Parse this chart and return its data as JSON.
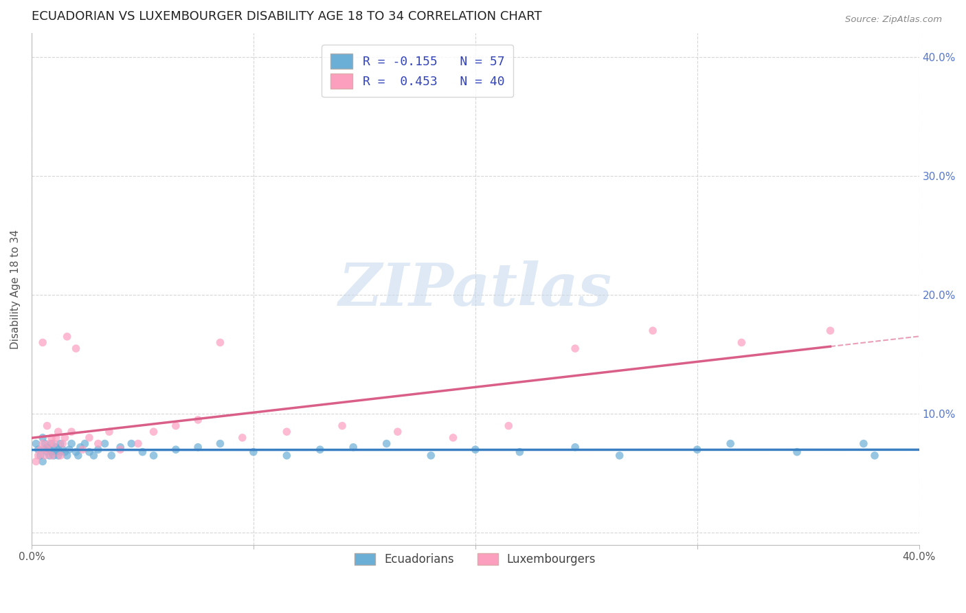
{
  "title": "ECUADORIAN VS LUXEMBOURGER DISABILITY AGE 18 TO 34 CORRELATION CHART",
  "source": "Source: ZipAtlas.com",
  "ylabel": "Disability Age 18 to 34",
  "xlim": [
    0.0,
    0.4
  ],
  "ylim": [
    -0.01,
    0.42
  ],
  "x_ticks": [
    0.0,
    0.1,
    0.2,
    0.3,
    0.4
  ],
  "x_tick_labels": [
    "0.0%",
    "",
    "",
    "",
    "40.0%"
  ],
  "y_ticks": [
    0.0,
    0.1,
    0.2,
    0.3,
    0.4
  ],
  "y_tick_labels_right": [
    "",
    "10.0%",
    "20.0%",
    "30.0%",
    "40.0%"
  ],
  "background_color": "#ffffff",
  "grid_color": "#cccccc",
  "watermark_text": "ZIPatlas",
  "legend_line1": "R = -0.155   N = 57",
  "legend_line2": "R =  0.453   N = 40",
  "blue_color": "#6baed6",
  "pink_color": "#fc9fbf",
  "blue_line_color": "#3a7fc1",
  "pink_line_color": "#d95f88",
  "title_fontsize": 13,
  "axis_label_fontsize": 11,
  "tick_fontsize": 11,
  "ecuadorians_x": [
    0.002,
    0.003,
    0.004,
    0.005,
    0.005,
    0.006,
    0.006,
    0.007,
    0.007,
    0.008,
    0.008,
    0.009,
    0.009,
    0.01,
    0.01,
    0.011,
    0.011,
    0.012,
    0.012,
    0.013,
    0.013,
    0.014,
    0.015,
    0.016,
    0.017,
    0.018,
    0.02,
    0.021,
    0.022,
    0.024,
    0.026,
    0.028,
    0.03,
    0.033,
    0.036,
    0.04,
    0.045,
    0.05,
    0.055,
    0.065,
    0.075,
    0.085,
    0.1,
    0.115,
    0.13,
    0.145,
    0.16,
    0.18,
    0.2,
    0.22,
    0.245,
    0.265,
    0.3,
    0.315,
    0.345,
    0.375,
    0.38
  ],
  "ecuadorians_y": [
    0.075,
    0.07,
    0.065,
    0.08,
    0.06,
    0.075,
    0.07,
    0.068,
    0.072,
    0.07,
    0.065,
    0.075,
    0.068,
    0.065,
    0.07,
    0.068,
    0.072,
    0.07,
    0.065,
    0.068,
    0.075,
    0.07,
    0.068,
    0.065,
    0.07,
    0.075,
    0.068,
    0.065,
    0.072,
    0.075,
    0.068,
    0.065,
    0.07,
    0.075,
    0.065,
    0.072,
    0.075,
    0.068,
    0.065,
    0.07,
    0.072,
    0.075,
    0.068,
    0.065,
    0.07,
    0.072,
    0.075,
    0.065,
    0.07,
    0.068,
    0.072,
    0.065,
    0.07,
    0.075,
    0.068,
    0.075,
    0.065
  ],
  "luxembourgers_x": [
    0.002,
    0.003,
    0.004,
    0.005,
    0.005,
    0.006,
    0.007,
    0.007,
    0.008,
    0.009,
    0.009,
    0.01,
    0.011,
    0.012,
    0.013,
    0.014,
    0.015,
    0.016,
    0.018,
    0.02,
    0.023,
    0.026,
    0.03,
    0.035,
    0.04,
    0.048,
    0.055,
    0.065,
    0.075,
    0.085,
    0.095,
    0.115,
    0.14,
    0.165,
    0.19,
    0.215,
    0.245,
    0.28,
    0.32,
    0.36
  ],
  "luxembourgers_y": [
    0.06,
    0.065,
    0.07,
    0.075,
    0.16,
    0.065,
    0.09,
    0.07,
    0.075,
    0.08,
    0.065,
    0.075,
    0.08,
    0.085,
    0.065,
    0.075,
    0.08,
    0.165,
    0.085,
    0.155,
    0.07,
    0.08,
    0.075,
    0.085,
    0.07,
    0.075,
    0.085,
    0.09,
    0.095,
    0.16,
    0.08,
    0.085,
    0.09,
    0.085,
    0.08,
    0.09,
    0.155,
    0.17,
    0.16,
    0.17
  ]
}
